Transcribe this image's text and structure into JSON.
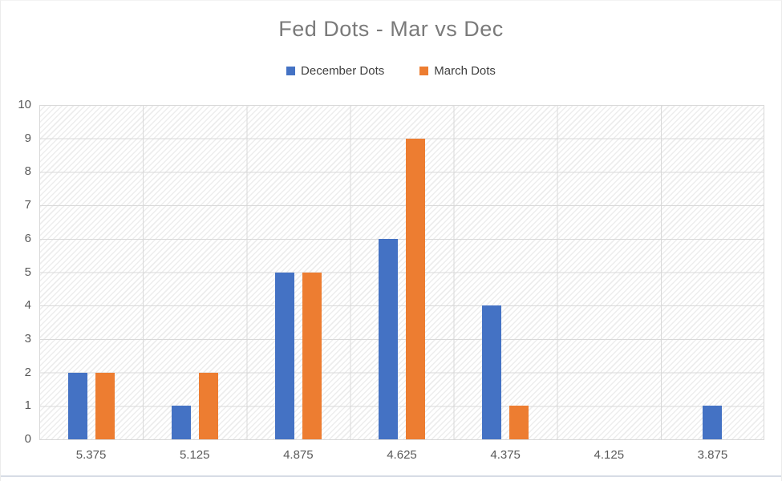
{
  "chart_data": {
    "type": "bar",
    "title": "Fed Dots - Mar vs Dec",
    "categories": [
      "5.375",
      "5.125",
      "4.875",
      "4.625",
      "4.375",
      "4.125",
      "3.875"
    ],
    "series": [
      {
        "name": "December Dots",
        "color": "#4472C4",
        "values": [
          2,
          1,
          5,
          6,
          4,
          0,
          1
        ]
      },
      {
        "name": "March Dots",
        "color": "#ED7D31",
        "values": [
          2,
          2,
          5,
          9,
          1,
          0,
          0
        ]
      }
    ],
    "ylim": [
      0,
      10
    ],
    "yticks": [
      0,
      1,
      2,
      3,
      4,
      5,
      6,
      7,
      8,
      9,
      10
    ],
    "xlabel": "",
    "ylabel": "",
    "legend_position": "top",
    "grid": true,
    "plot_background": "diagonal-hatch"
  },
  "colors": {
    "grid": "#d9d9d9",
    "hatch_line": "#ededed",
    "title_text": "#7a7a7a",
    "axis_text": "#595959",
    "legend_text": "#404040",
    "frame_bottom": "#d7dce5"
  }
}
